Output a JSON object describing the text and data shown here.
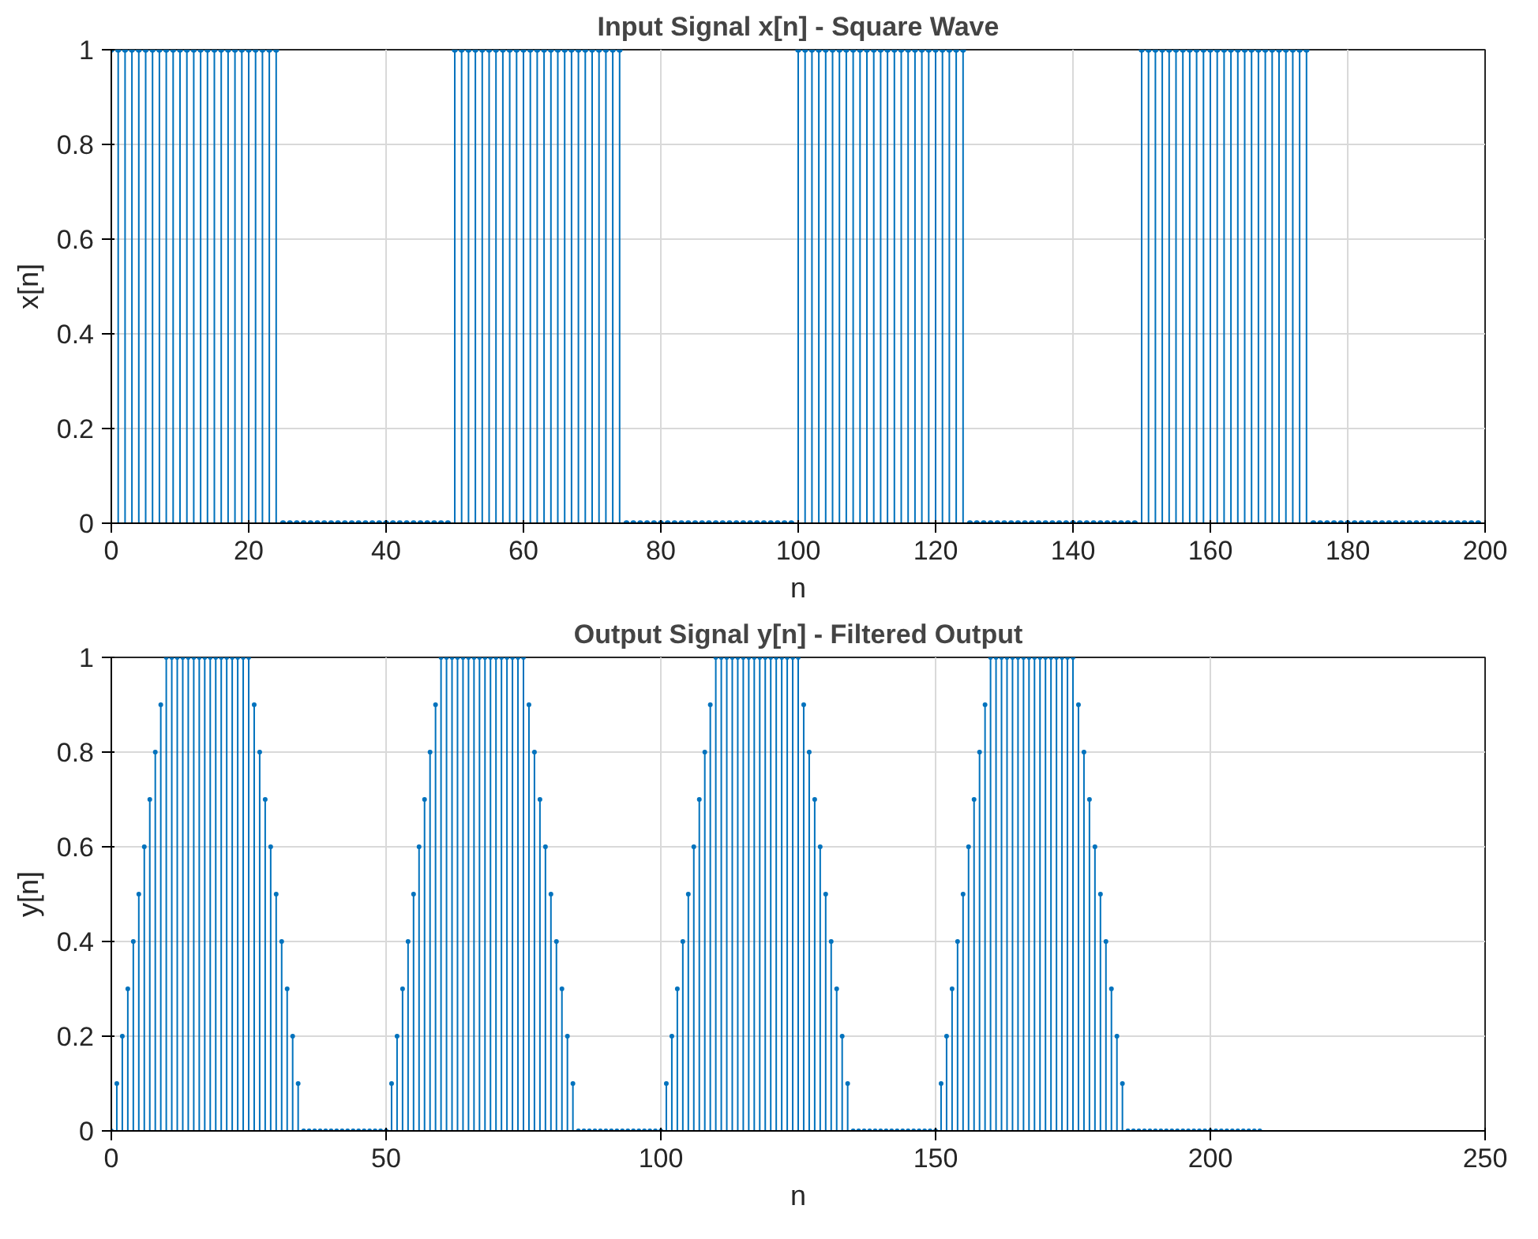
{
  "chart_data": [
    {
      "type": "lollipop",
      "title": "Input Signal x[n] - Square Wave",
      "xlabel": "n",
      "ylabel": "x[n]",
      "color": "#0072bd",
      "marker": "circle",
      "grid": true,
      "xlim": [
        0,
        200
      ],
      "xticks": [
        0,
        20,
        40,
        60,
        80,
        100,
        120,
        140,
        160,
        180,
        200
      ],
      "ylim": [
        0,
        1
      ],
      "yticks": [
        0,
        0.2,
        0.4,
        0.6,
        0.8,
        1
      ],
      "x": [
        0,
        1,
        2,
        3,
        4,
        5,
        6,
        7,
        8,
        9,
        10,
        11,
        12,
        13,
        14,
        15,
        16,
        17,
        18,
        19,
        20,
        21,
        22,
        23,
        24,
        25,
        26,
        27,
        28,
        29,
        30,
        31,
        32,
        33,
        34,
        35,
        36,
        37,
        38,
        39,
        40,
        41,
        42,
        43,
        44,
        45,
        46,
        47,
        48,
        49,
        50,
        51,
        52,
        53,
        54,
        55,
        56,
        57,
        58,
        59,
        60,
        61,
        62,
        63,
        64,
        65,
        66,
        67,
        68,
        69,
        70,
        71,
        72,
        73,
        74,
        75,
        76,
        77,
        78,
        79,
        80,
        81,
        82,
        83,
        84,
        85,
        86,
        87,
        88,
        89,
        90,
        91,
        92,
        93,
        94,
        95,
        96,
        97,
        98,
        99,
        100,
        101,
        102,
        103,
        104,
        105,
        106,
        107,
        108,
        109,
        110,
        111,
        112,
        113,
        114,
        115,
        116,
        117,
        118,
        119,
        120,
        121,
        122,
        123,
        124,
        125,
        126,
        127,
        128,
        129,
        130,
        131,
        132,
        133,
        134,
        135,
        136,
        137,
        138,
        139,
        140,
        141,
        142,
        143,
        144,
        145,
        146,
        147,
        148,
        149,
        150,
        151,
        152,
        153,
        154,
        155,
        156,
        157,
        158,
        159,
        160,
        161,
        162,
        163,
        164,
        165,
        166,
        167,
        168,
        169,
        170,
        171,
        172,
        173,
        174,
        175,
        176,
        177,
        178,
        179,
        180,
        181,
        182,
        183,
        184,
        185,
        186,
        187,
        188,
        189,
        190,
        191,
        192,
        193,
        194,
        195,
        196,
        197,
        198,
        199
      ],
      "values": [
        1,
        1,
        1,
        1,
        1,
        1,
        1,
        1,
        1,
        1,
        1,
        1,
        1,
        1,
        1,
        1,
        1,
        1,
        1,
        1,
        1,
        1,
        1,
        1,
        1,
        0,
        0,
        0,
        0,
        0,
        0,
        0,
        0,
        0,
        0,
        0,
        0,
        0,
        0,
        0,
        0,
        0,
        0,
        0,
        0,
        0,
        0,
        0,
        0,
        0,
        1,
        1,
        1,
        1,
        1,
        1,
        1,
        1,
        1,
        1,
        1,
        1,
        1,
        1,
        1,
        1,
        1,
        1,
        1,
        1,
        1,
        1,
        1,
        1,
        1,
        0,
        0,
        0,
        0,
        0,
        0,
        0,
        0,
        0,
        0,
        0,
        0,
        0,
        0,
        0,
        0,
        0,
        0,
        0,
        0,
        0,
        0,
        0,
        0,
        0,
        1,
        1,
        1,
        1,
        1,
        1,
        1,
        1,
        1,
        1,
        1,
        1,
        1,
        1,
        1,
        1,
        1,
        1,
        1,
        1,
        1,
        1,
        1,
        1,
        1,
        0,
        0,
        0,
        0,
        0,
        0,
        0,
        0,
        0,
        0,
        0,
        0,
        0,
        0,
        0,
        0,
        0,
        0,
        0,
        0,
        0,
        0,
        0,
        0,
        0,
        1,
        1,
        1,
        1,
        1,
        1,
        1,
        1,
        1,
        1,
        1,
        1,
        1,
        1,
        1,
        1,
        1,
        1,
        1,
        1,
        1,
        1,
        1,
        1,
        1,
        0,
        0,
        0,
        0,
        0,
        0,
        0,
        0,
        0,
        0,
        0,
        0,
        0,
        0,
        0,
        0,
        0,
        0,
        0,
        0,
        0,
        0,
        0,
        0,
        0
      ]
    },
    {
      "type": "lollipop",
      "title": "Output Signal y[n] - Filtered Output",
      "xlabel": "n",
      "ylabel": "y[n]",
      "color": "#0072bd",
      "marker": "circle",
      "grid": true,
      "xlim": [
        0,
        250
      ],
      "xticks": [
        0,
        50,
        100,
        150,
        200,
        250
      ],
      "ylim": [
        0,
        1
      ],
      "yticks": [
        0,
        0.2,
        0.4,
        0.6,
        0.8,
        1
      ],
      "x": [
        0,
        1,
        2,
        3,
        4,
        5,
        6,
        7,
        8,
        9,
        10,
        11,
        12,
        13,
        14,
        15,
        16,
        17,
        18,
        19,
        20,
        21,
        22,
        23,
        24,
        25,
        26,
        27,
        28,
        29,
        30,
        31,
        32,
        33,
        34,
        35,
        36,
        37,
        38,
        39,
        40,
        41,
        42,
        43,
        44,
        45,
        46,
        47,
        48,
        49,
        50,
        51,
        52,
        53,
        54,
        55,
        56,
        57,
        58,
        59,
        60,
        61,
        62,
        63,
        64,
        65,
        66,
        67,
        68,
        69,
        70,
        71,
        72,
        73,
        74,
        75,
        76,
        77,
        78,
        79,
        80,
        81,
        82,
        83,
        84,
        85,
        86,
        87,
        88,
        89,
        90,
        91,
        92,
        93,
        94,
        95,
        96,
        97,
        98,
        99,
        100,
        101,
        102,
        103,
        104,
        105,
        106,
        107,
        108,
        109,
        110,
        111,
        112,
        113,
        114,
        115,
        116,
        117,
        118,
        119,
        120,
        121,
        122,
        123,
        124,
        125,
        126,
        127,
        128,
        129,
        130,
        131,
        132,
        133,
        134,
        135,
        136,
        137,
        138,
        139,
        140,
        141,
        142,
        143,
        144,
        145,
        146,
        147,
        148,
        149,
        150,
        151,
        152,
        153,
        154,
        155,
        156,
        157,
        158,
        159,
        160,
        161,
        162,
        163,
        164,
        165,
        166,
        167,
        168,
        169,
        170,
        171,
        172,
        173,
        174,
        175,
        176,
        177,
        178,
        179,
        180,
        181,
        182,
        183,
        184,
        185,
        186,
        187,
        188,
        189,
        190,
        191,
        192,
        193,
        194,
        195,
        196,
        197,
        198,
        199,
        200,
        201,
        202,
        203,
        204,
        205,
        206,
        207,
        208,
        209
      ],
      "values": [
        0,
        0.1,
        0.2,
        0.3,
        0.4,
        0.5,
        0.6,
        0.7,
        0.8,
        0.9,
        1,
        1,
        1,
        1,
        1,
        1,
        1,
        1,
        1,
        1,
        1,
        1,
        1,
        1,
        1,
        1,
        0.9,
        0.8,
        0.7,
        0.6,
        0.5,
        0.4,
        0.3,
        0.2,
        0.1,
        0,
        0,
        0,
        0,
        0,
        0,
        0,
        0,
        0,
        0,
        0,
        0,
        0,
        0,
        0,
        0,
        0.1,
        0.2,
        0.3,
        0.4,
        0.5,
        0.6,
        0.7,
        0.8,
        0.9,
        1,
        1,
        1,
        1,
        1,
        1,
        1,
        1,
        1,
        1,
        1,
        1,
        1,
        1,
        1,
        1,
        0.9,
        0.8,
        0.7,
        0.6,
        0.5,
        0.4,
        0.3,
        0.2,
        0.1,
        0,
        0,
        0,
        0,
        0,
        0,
        0,
        0,
        0,
        0,
        0,
        0,
        0,
        0,
        0,
        0,
        0.1,
        0.2,
        0.3,
        0.4,
        0.5,
        0.6,
        0.7,
        0.8,
        0.9,
        1,
        1,
        1,
        1,
        1,
        1,
        1,
        1,
        1,
        1,
        1,
        1,
        1,
        1,
        1,
        1,
        0.9,
        0.8,
        0.7,
        0.6,
        0.5,
        0.4,
        0.3,
        0.2,
        0.1,
        0,
        0,
        0,
        0,
        0,
        0,
        0,
        0,
        0,
        0,
        0,
        0,
        0,
        0,
        0,
        0,
        0.1,
        0.2,
        0.3,
        0.4,
        0.5,
        0.6,
        0.7,
        0.8,
        0.9,
        1,
        1,
        1,
        1,
        1,
        1,
        1,
        1,
        1,
        1,
        1,
        1,
        1,
        1,
        1,
        1,
        0.9,
        0.8,
        0.7,
        0.6,
        0.5,
        0.4,
        0.3,
        0.2,
        0.1,
        0,
        0,
        0,
        0,
        0,
        0,
        0,
        0,
        0,
        0,
        0,
        0,
        0,
        0,
        0,
        0,
        0,
        0,
        0,
        0,
        0,
        0,
        0,
        0,
        0
      ]
    }
  ]
}
